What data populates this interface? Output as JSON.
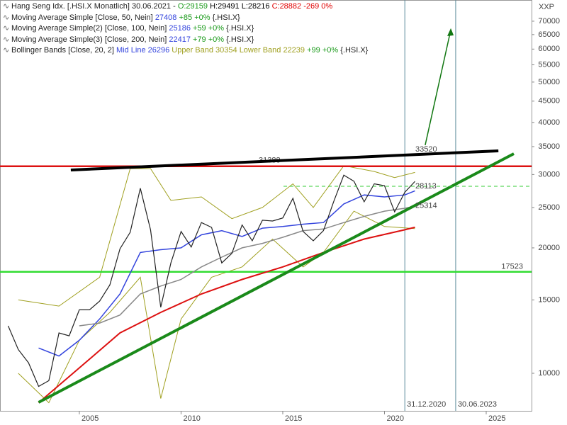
{
  "chart_data": {
    "type": "line",
    "title": "Hang Seng Idx. [.HSI.X  Monatlich] 30.06.2021 -",
    "ohlc": [
      {
        "text": "O:29159",
        "color": "#1a9a1a"
      },
      {
        "text": "H:29491",
        "color": "#000000"
      },
      {
        "text": "L:28216",
        "color": "#000000"
      },
      {
        "text": "C:28882 -269 0%",
        "color": "#e00000"
      }
    ],
    "axis_label": "XXP",
    "log_scale": true,
    "xlim": [
      2001.1,
      2027.23
    ],
    "ylim": [
      8126,
      78700
    ],
    "xticks": [
      2005,
      2010,
      2015,
      2020,
      2025
    ],
    "yticks": [
      10000,
      15000,
      20000,
      25000,
      30000,
      35000,
      40000,
      45000,
      50000,
      55000,
      60000,
      65000,
      70000
    ],
    "color": "#222222",
    "x": [
      2001.5,
      2002.0,
      2002.5,
      2003.0,
      2003.5,
      2004.0,
      2004.5,
      2005.0,
      2005.5,
      2006.0,
      2006.5,
      2007.0,
      2007.5,
      2008.0,
      2008.5,
      2009.0,
      2009.5,
      2010.0,
      2010.5,
      2011.0,
      2011.5,
      2012.0,
      2012.5,
      2013.0,
      2013.5,
      2014.0,
      2014.5,
      2015.0,
      2015.5,
      2016.0,
      2016.5,
      2017.0,
      2017.5,
      2018.0,
      2018.5,
      2019.0,
      2019.5,
      2020.0,
      2020.5,
      2021.0,
      2021.5
    ],
    "values": [
      13000,
      11400,
      10600,
      9300,
      9600,
      12500,
      12300,
      14200,
      14200,
      14900,
      16300,
      19900,
      21800,
      27800,
      22100,
      14400,
      18400,
      21900,
      20100,
      23000,
      22400,
      18400,
      19400,
      22700,
      20800,
      23300,
      23200,
      23600,
      26300,
      21900,
      20800,
      22000,
      25800,
      29900,
      28900,
      25800,
      28500,
      28200,
      24400,
      27200,
      28882
    ],
    "indicators": [
      {
        "name": "Moving Average Simple [Close, 50, Nein]",
        "last": 27408,
        "change": "+85 +0%",
        "symbol": "{.HSI.X}",
        "color": "#3344dd",
        "x": [
          2003.0,
          2004.0,
          2005.0,
          2006.0,
          2007.0,
          2008.0,
          2009.0,
          2010.0,
          2011.0,
          2012.0,
          2013.0,
          2014.0,
          2015.0,
          2016.0,
          2017.0,
          2018.0,
          2019.0,
          2020.0,
          2021.0,
          2021.5
        ],
        "values": [
          11500,
          11000,
          12000,
          13500,
          15500,
          19500,
          19800,
          20000,
          21500,
          22000,
          21300,
          22300,
          22500,
          22800,
          23000,
          25500,
          26800,
          26500,
          26800,
          27408
        ]
      },
      {
        "name": "Moving Average Simple(2) [Close, 100, Nein]",
        "last": 25186,
        "change": "+59 +0%",
        "symbol": "{.HSI.X}",
        "color": "#888888",
        "x": [
          2005.0,
          2006.0,
          2007.0,
          2008.0,
          2009.0,
          2010.0,
          2011.0,
          2012.0,
          2013.0,
          2014.0,
          2015.0,
          2016.0,
          2017.0,
          2018.0,
          2019.0,
          2020.0,
          2021.0,
          2021.5
        ],
        "values": [
          13000,
          13200,
          13800,
          15500,
          16200,
          16800,
          18000,
          19000,
          20000,
          20500,
          21200,
          22000,
          22200,
          23000,
          23800,
          24500,
          24900,
          25186
        ]
      },
      {
        "name": "Moving Average Simple(3) [Close, 200, Nein]",
        "last": 22417,
        "change": "+79 +0%",
        "symbol": "{.HSI.X}",
        "color": "#dd1111",
        "x": [
          2003.0,
          2005.0,
          2007.0,
          2009.0,
          2011.0,
          2013.0,
          2015.0,
          2017.0,
          2019.0,
          2021.0,
          2021.5
        ],
        "values": [
          8500,
          10300,
          12500,
          14000,
          15500,
          16800,
          18000,
          19500,
          21000,
          22100,
          22417
        ]
      }
    ],
    "bollinger": {
      "name": "Bollinger Bands [Close, 20, 2]",
      "mid": "Mid Line 26296",
      "bands": "Upper Band 30354 Lower Band 22239",
      "change": "+99 +0%",
      "symbol": "{.HSI.X}",
      "color": "#a0a020",
      "mid_color": "#3344dd",
      "upper_x": [
        2002.0,
        2004.0,
        2006.0,
        2007.5,
        2008.5,
        2009.5,
        2011.0,
        2012.5,
        2014.0,
        2015.5,
        2016.5,
        2018.0,
        2019.5,
        2020.5,
        2021.5
      ],
      "upper": [
        15000,
        14500,
        17000,
        31000,
        31000,
        26000,
        26500,
        23500,
        25000,
        28500,
        25000,
        31500,
        30500,
        29500,
        30354
      ],
      "lower_x": [
        2002.0,
        2003.5,
        2005.0,
        2006.5,
        2008.0,
        2009.0,
        2010.0,
        2011.5,
        2013.0,
        2014.5,
        2016.0,
        2017.0,
        2018.5,
        2020.0,
        2021.5
      ],
      "lower": [
        10000,
        8500,
        12000,
        14000,
        17000,
        8700,
        13500,
        17000,
        18000,
        21000,
        18000,
        19500,
        24500,
        22500,
        22239
      ]
    },
    "levels": [
      {
        "value": 31388,
        "color": "#dd1111"
      },
      {
        "value": 17523,
        "color": "#33dd33"
      }
    ],
    "price_labels": [
      33520,
      28113,
      25314
    ],
    "trendlines": [
      {
        "color": "#000000",
        "x": [
          2004.58,
          2025.6
        ],
        "values": [
          30760,
          34190
        ]
      },
      {
        "color": "#1a8a1a",
        "x": [
          2003.0,
          2026.36
        ],
        "values": [
          8517,
          33660
        ]
      },
      {
        "color": "#117711",
        "x": [
          2022.0,
          2023.26
        ],
        "values": [
          35280,
          66800
        ]
      }
    ],
    "markers": [
      {
        "x": 2021.0,
        "label": "31.12.2020"
      },
      {
        "x": 2023.5,
        "label": "30.06.2023"
      }
    ]
  }
}
